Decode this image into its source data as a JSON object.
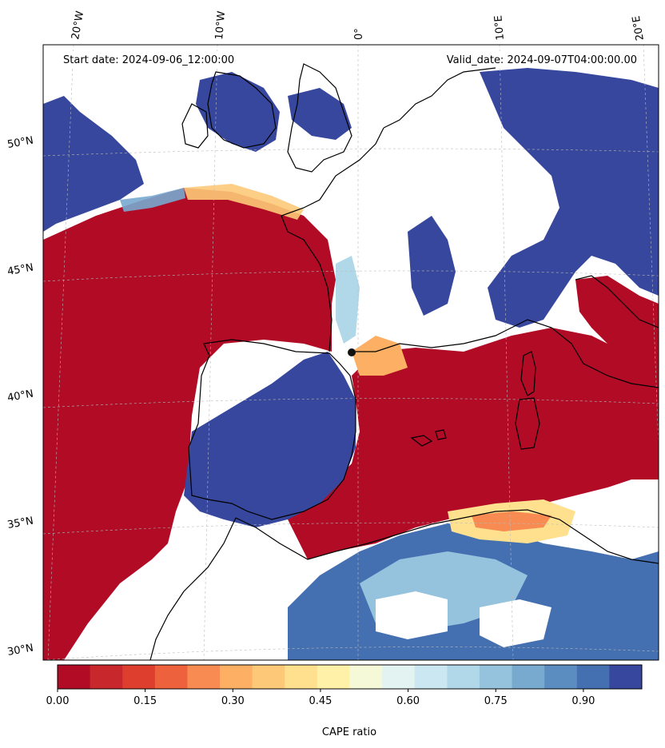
{
  "header": {
    "start_date": "Start date: 2024-09-06_12:00:00",
    "valid_date": "Valid_date: 2024-09-07T04:00:00.00"
  },
  "map": {
    "projection": "conic",
    "extent_lon": [
      -20,
      20
    ],
    "extent_lat": [
      30,
      53
    ],
    "lon_labels": [
      "20°W",
      "10°W",
      "0°",
      "10°E",
      "20°E"
    ],
    "lat_labels": [
      "50°N",
      "45°N",
      "40°N",
      "35°N",
      "30°N"
    ],
    "field": "CAPE ratio",
    "gridlines": true
  },
  "colorbar": {
    "label": "CAPE ratio",
    "ticks": [
      "0.00",
      "0.15",
      "0.30",
      "0.45",
      "0.60",
      "0.75",
      "0.90"
    ],
    "colors": [
      "#b10b26",
      "#c8272c",
      "#dd3e2d",
      "#ee613d",
      "#f88b52",
      "#fdb063",
      "#fdc979",
      "#fee08e",
      "#fff2a8",
      "#f5f9d8",
      "#e2f3f1",
      "#cbe8f2",
      "#b1d8e9",
      "#95c3dd",
      "#78a9cf",
      "#5b8dc0",
      "#4470b1",
      "#36479d"
    ]
  }
}
